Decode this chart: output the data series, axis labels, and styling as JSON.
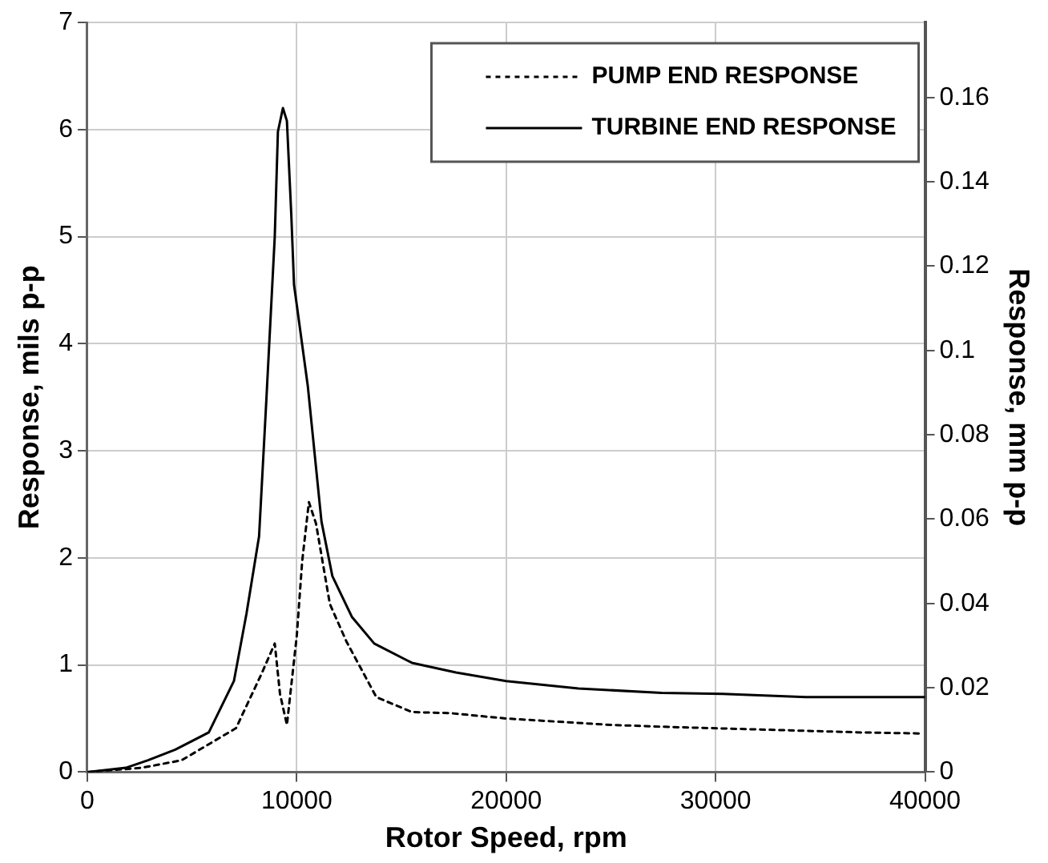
{
  "chart_data": {
    "type": "line",
    "xlabel": "Rotor Speed, rpm",
    "ylabel": "Response, mils p-p",
    "y2label": "Response, mm p-p",
    "xlim": [
      0,
      40000
    ],
    "xticks": [
      0,
      10000,
      20000,
      30000,
      40000
    ],
    "ylim": [
      0,
      7
    ],
    "yticks": [
      0,
      1,
      2,
      3,
      4,
      5,
      6,
      7
    ],
    "y2lim": [
      0,
      0.1778
    ],
    "y2ticks": [
      0,
      0.02,
      0.04,
      0.06,
      0.08,
      0.1,
      0.12,
      0.14,
      0.16
    ],
    "grid": true,
    "legend": "top right",
    "marker": "none",
    "series": [
      {
        "name": "PUMP END RESPONSE",
        "color": "#000000",
        "line_style": "dotted",
        "x": [
          0,
          2600,
          4500,
          7100,
          8300,
          8950,
          9200,
          9530,
          10000,
          10260,
          10580,
          10920,
          11580,
          12370,
          13800,
          15500,
          17340,
          20000,
          25030,
          27950,
          31660,
          36970,
          39860
        ],
        "values": [
          0,
          0.04,
          0.11,
          0.41,
          0.91,
          1.2,
          0.73,
          0.44,
          1.27,
          1.97,
          2.52,
          2.32,
          1.57,
          1.22,
          0.7,
          0.56,
          0.55,
          0.5,
          0.44,
          0.42,
          0.4,
          0.37,
          0.36
        ]
      },
      {
        "name": "TURBINE END RESPONSE",
        "color": "#000000",
        "line_style": "solid",
        "x": [
          0,
          1840,
          2900,
          4200,
          5800,
          7000,
          7600,
          8200,
          8550,
          8950,
          9100,
          9340,
          9530,
          9740,
          9870,
          10530,
          11180,
          11700,
          12630,
          13700,
          15500,
          17600,
          20000,
          23450,
          27420,
          30340,
          34300,
          40000
        ],
        "values": [
          0,
          0.04,
          0.11,
          0.21,
          0.37,
          0.85,
          1.48,
          2.2,
          3.48,
          5.0,
          5.98,
          6.2,
          6.08,
          5.2,
          4.55,
          3.6,
          2.34,
          1.83,
          1.45,
          1.2,
          1.02,
          0.93,
          0.85,
          0.78,
          0.74,
          0.73,
          0.7,
          0.7
        ]
      }
    ]
  }
}
